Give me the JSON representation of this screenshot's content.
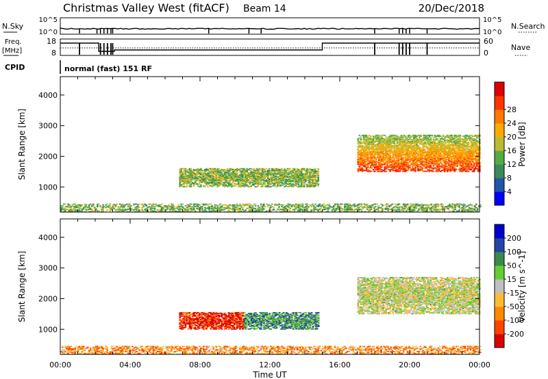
{
  "header": {
    "site": "Christmas Valley West (fitACF)",
    "beam": "Beam 14",
    "date": "20/Dec/2018"
  },
  "status_panels": {
    "nsky_label": "N.Sky",
    "nsearch_label": "N.Search",
    "nsky_ticks": [
      "10^5",
      "10^0"
    ],
    "nsearch_ticks": [
      "10^5",
      "10^0"
    ],
    "freq_label": "Freq.",
    "freq_unit": "[MHz]",
    "freq_ticks": [
      "18",
      "8"
    ],
    "nave_label": "Nave",
    "nave_ticks": [
      "60",
      "0"
    ],
    "cpid_label": "CPID",
    "cpid_value": "normal (fast) 151 RF"
  },
  "chart_data": [
    {
      "type": "heatmap",
      "name": "power",
      "ylabel": "Slant Range [km]",
      "xlabel": "",
      "y_ticks": [
        "1000",
        "2000",
        "3000",
        "4000"
      ],
      "ylim": [
        180,
        4600
      ],
      "colorbar_label": "Power [dB]",
      "colorbar_ticks": [
        "4",
        "8",
        "12",
        "16",
        "20",
        "24",
        "28"
      ],
      "colorbar_colors": [
        "#0000ff",
        "#2255aa",
        "#3a8a5a",
        "#55aa44",
        "#bbbb33",
        "#ffaa00",
        "#ff7a00",
        "#ff3300",
        "#dd0000"
      ],
      "regions": [
        {
          "t_start": 6.8,
          "t_end": 14.8,
          "r_low": 1000,
          "r_high": 1600,
          "level": 0.42
        },
        {
          "t_start": 17.0,
          "t_end": 24.0,
          "r_low": 1500,
          "r_high": 2700,
          "level": 0.85
        },
        {
          "t_start": 0.0,
          "t_end": 24.0,
          "r_low": 180,
          "r_high": 450,
          "level": 0.4
        }
      ]
    },
    {
      "type": "heatmap",
      "name": "velocity",
      "ylabel": "Slant Range [km]",
      "xlabel": "Time UT",
      "y_ticks": [
        "1000",
        "2000",
        "3000",
        "4000"
      ],
      "ylim": [
        180,
        4600
      ],
      "colorbar_label": "Velocity [m s^-1]",
      "colorbar_ticks": [
        "-200",
        "-100",
        "-50",
        "-15",
        "15",
        "50",
        "100",
        "200"
      ],
      "colorbar_colors": [
        "#dd0000",
        "#ff4400",
        "#ff8800",
        "#ffbb33",
        "#c0c0c0",
        "#66cc33",
        "#3a8a4a",
        "#2244aa",
        "#0000cc"
      ],
      "regions": [
        {
          "t_start": 6.8,
          "t_end": 10.5,
          "r_low": 1000,
          "r_high": 1550,
          "level": 0.1
        },
        {
          "t_start": 10.5,
          "t_end": 14.8,
          "r_low": 1000,
          "r_high": 1550,
          "level": 0.7
        },
        {
          "t_start": 17.0,
          "t_end": 24.0,
          "r_low": 1500,
          "r_high": 2700,
          "level": 0.5
        },
        {
          "t_start": 0.0,
          "t_end": 24.0,
          "r_low": 180,
          "r_high": 450,
          "level": 0.3
        }
      ]
    }
  ],
  "x_axis": {
    "ticks": [
      "00:00",
      "04:00",
      "08:00",
      "12:00",
      "16:00",
      "20:00",
      "00:00"
    ],
    "label": "Time UT",
    "range_hours": [
      0,
      24
    ]
  }
}
